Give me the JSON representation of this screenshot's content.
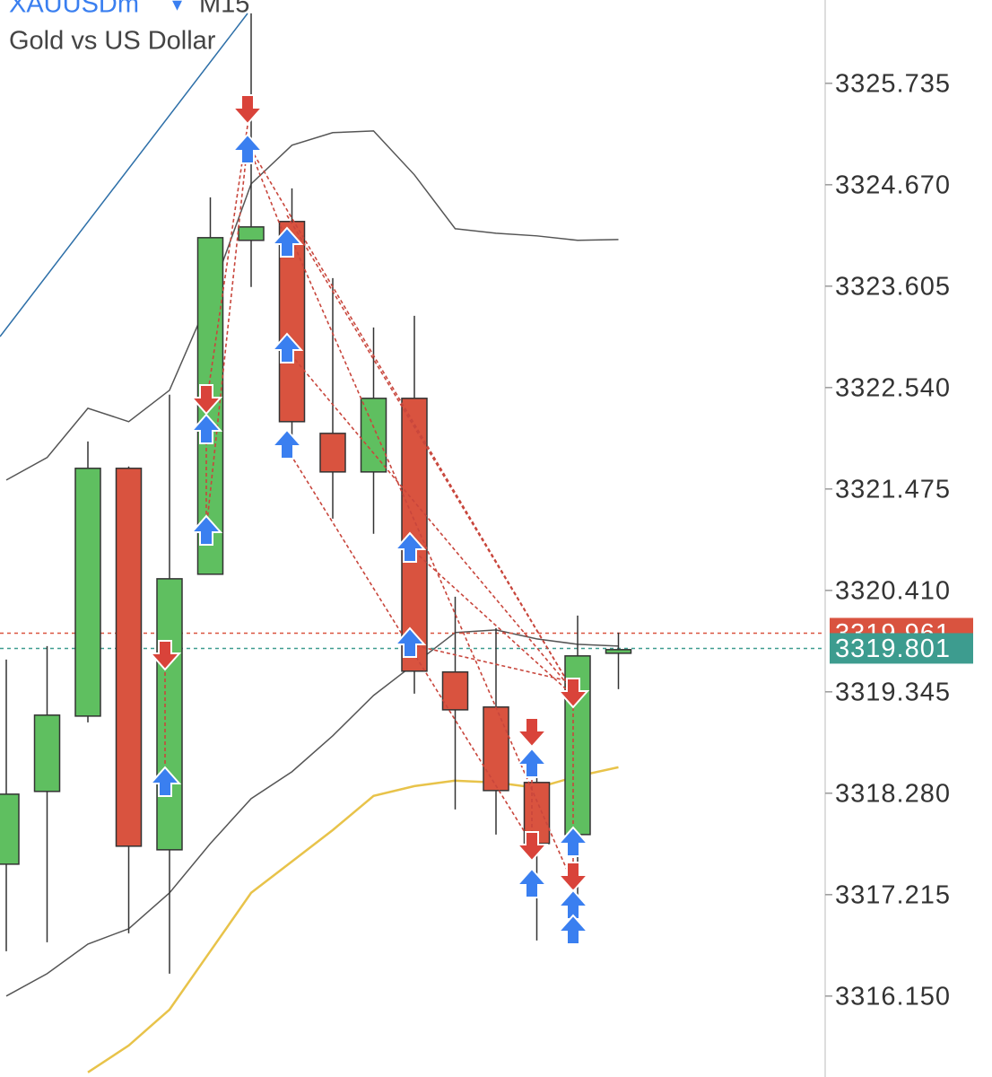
{
  "chart_data": {
    "type": "candlestick",
    "symbol": "XAUUSDm",
    "timeframe": "M15",
    "title": "Gold vs US Dollar",
    "ylim": [
      3315.3,
      3326.61
    ],
    "yticks": [
      3325.735,
      {
        "value": 3324.67,
        "label": "3324.670"
      },
      3323.605,
      {
        "value": 3322.54,
        "label": "3322.540"
      },
      3321.475,
      {
        "value": 3320.41,
        "label": "3320.410"
      },
      3319.345,
      {
        "value": 3318.28,
        "label": "3318.280"
      },
      3317.215,
      {
        "value": 3316.15,
        "label": "3316.150"
      }
    ],
    "up_color": "#5fbf60",
    "down_color": "#d9533f",
    "open": [
      3317.535,
      3318.299,
      3319.09,
      3321.692,
      3317.686,
      3320.58,
      3324.086,
      3324.284,
      3322.059,
      3321.654,
      3322.427,
      3319.553,
      3319.185,
      3318.393,
      3317.846,
      3319.75
    ],
    "high": [
      3319.684,
      3319.825,
      3321.974,
      3321.711,
      3322.465,
      3324.538,
      3326.47,
      3324.632,
      3323.69,
      3323.171,
      3323.294,
      3320.344,
      3320.014,
      3318.647,
      3320.146,
      3319.967
    ],
    "low": [
      3316.621,
      3316.715,
      3319.024,
      3316.809,
      3316.385,
      3320.58,
      3323.596,
      3321.899,
      3321.164,
      3321.004,
      3319.326,
      3318.11,
      3317.846,
      3316.734,
      3317.186,
      3319.373
    ],
    "close": [
      3318.27,
      3319.1,
      3321.692,
      3317.724,
      3320.532,
      3324.114,
      3324.227,
      3322.182,
      3321.654,
      3322.427,
      3319.562,
      3319.156,
      3318.308,
      3317.752,
      3319.722,
      3319.788
    ],
    "lines": [
      {
        "name": "upper band",
        "color": "#555555",
        "values": [
          3321.569,
          3321.805,
          3322.323,
          3322.182,
          3322.512,
          3323.501,
          3324.679,
          3325.085,
          3325.217,
          3325.235,
          3324.774,
          3324.208,
          3324.161,
          3324.133,
          3324.086,
          3324.095
        ]
      },
      {
        "name": "lower band",
        "color": "#555555",
        "values": [
          3316.15,
          3316.385,
          3316.696,
          3316.857,
          3317.234,
          3317.752,
          3318.223,
          3318.506,
          3318.883,
          3319.307,
          3319.637,
          3319.967,
          3319.995,
          3319.901,
          3319.844,
          3319.825
        ]
      },
      {
        "name": "moving average",
        "color": "#e8c34a",
        "values": [
          null,
          null,
          3315.349,
          3315.631,
          3316.008,
          3316.621,
          3317.234,
          3317.563,
          3317.893,
          3318.252,
          3318.355,
          3318.412,
          3318.393,
          3318.336,
          3318.459,
          3318.553
        ]
      }
    ],
    "price_lines": [
      {
        "value": 3319.961,
        "label": "3319.961",
        "color": "#d9533f"
      },
      {
        "value": 3319.801,
        "label": "3319.801",
        "color": "#3d9c8f"
      }
    ]
  }
}
